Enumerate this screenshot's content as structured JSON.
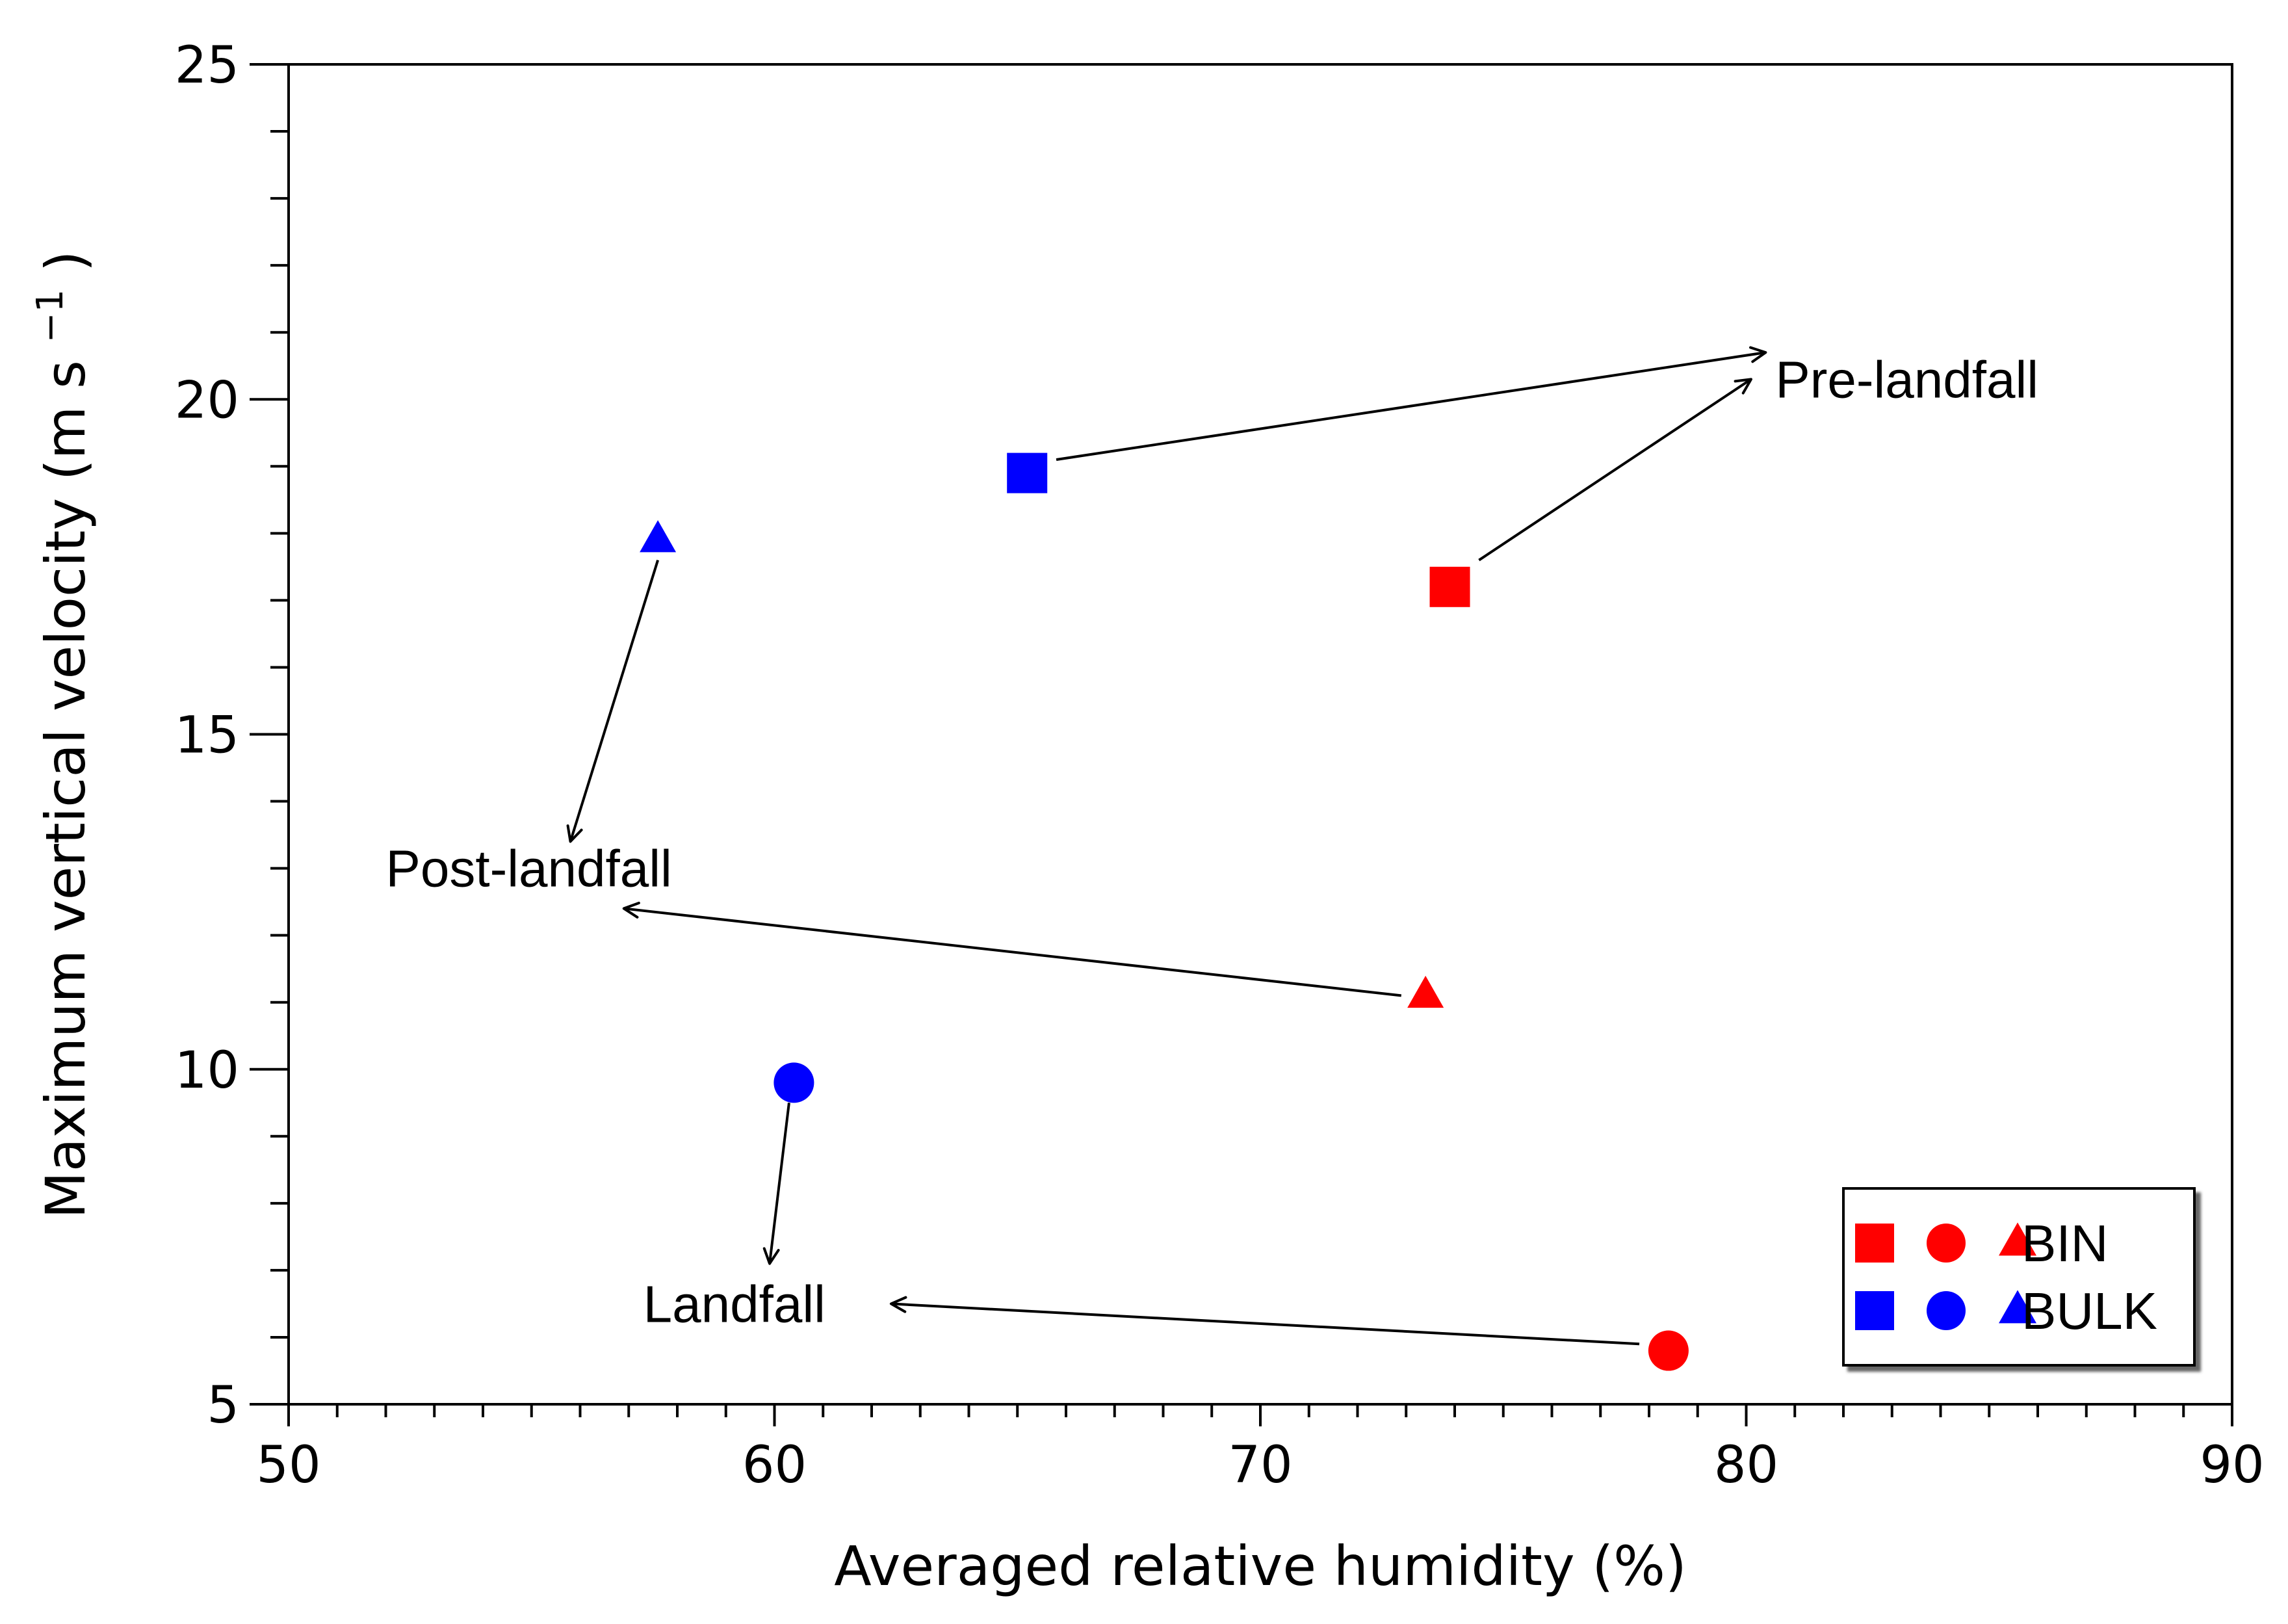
{
  "chart_data": {
    "type": "scatter",
    "title": "",
    "xlabel": "Averaged relative humidity (%)",
    "ylabel_main": "Maximum vertical velocity (m s",
    "ylabel_sup": "−1",
    "ylabel_close": ")",
    "xlim": [
      50,
      90
    ],
    "ylim": [
      5,
      25
    ],
    "x_major_ticks": [
      50,
      60,
      70,
      80,
      90
    ],
    "x_minor_step": 1,
    "y_major_ticks": [
      5,
      10,
      15,
      20,
      25
    ],
    "y_minor_step": 1,
    "x_tick_labels": [
      "50",
      "60",
      "70",
      "80",
      "90"
    ],
    "y_tick_labels": [
      "5",
      "10",
      "15",
      "20",
      "25"
    ],
    "grid": false,
    "legend_position": "bottom-right",
    "series": [
      {
        "name": "BIN",
        "color": "#ff0000",
        "points": [
          {
            "marker": "square",
            "phase": "Pre-landfall",
            "x": 73.9,
            "y": 17.2
          },
          {
            "marker": "circle",
            "phase": "Landfall",
            "x": 78.4,
            "y": 5.8
          },
          {
            "marker": "triangle",
            "phase": "Post-landfall",
            "x": 73.4,
            "y": 11.1
          }
        ]
      },
      {
        "name": "BULK",
        "color": "#0000ff",
        "points": [
          {
            "marker": "square",
            "phase": "Pre-landfall",
            "x": 65.2,
            "y": 18.9
          },
          {
            "marker": "circle",
            "phase": "Landfall",
            "x": 60.4,
            "y": 9.8
          },
          {
            "marker": "triangle",
            "phase": "Post-landfall",
            "x": 57.6,
            "y": 17.9
          }
        ]
      }
    ],
    "annotations": [
      {
        "key": "pre",
        "text": "Pre-landfall",
        "x": 80.6,
        "y": 20.3
      },
      {
        "key": "post",
        "text": "Post-landfall",
        "x": 52.0,
        "y": 13.0
      },
      {
        "key": "land",
        "text": "Landfall",
        "x": 57.3,
        "y": 6.5
      }
    ],
    "arrows": [
      {
        "from_x": 65.8,
        "from_y": 19.1,
        "to_x": 80.4,
        "to_y": 20.7
      },
      {
        "from_x": 74.5,
        "from_y": 17.6,
        "to_x": 80.1,
        "to_y": 20.3
      },
      {
        "from_x": 57.6,
        "from_y": 17.6,
        "to_x": 55.8,
        "to_y": 13.4
      },
      {
        "from_x": 72.9,
        "from_y": 11.1,
        "to_x": 56.9,
        "to_y": 12.4
      },
      {
        "from_x": 60.3,
        "from_y": 9.5,
        "to_x": 59.9,
        "to_y": 7.1
      },
      {
        "from_x": 77.8,
        "from_y": 5.9,
        "to_x": 62.4,
        "to_y": 6.5
      }
    ],
    "legend": [
      {
        "label": "BIN",
        "color": "#ff0000"
      },
      {
        "label": "BULK",
        "color": "#0000ff"
      }
    ]
  }
}
